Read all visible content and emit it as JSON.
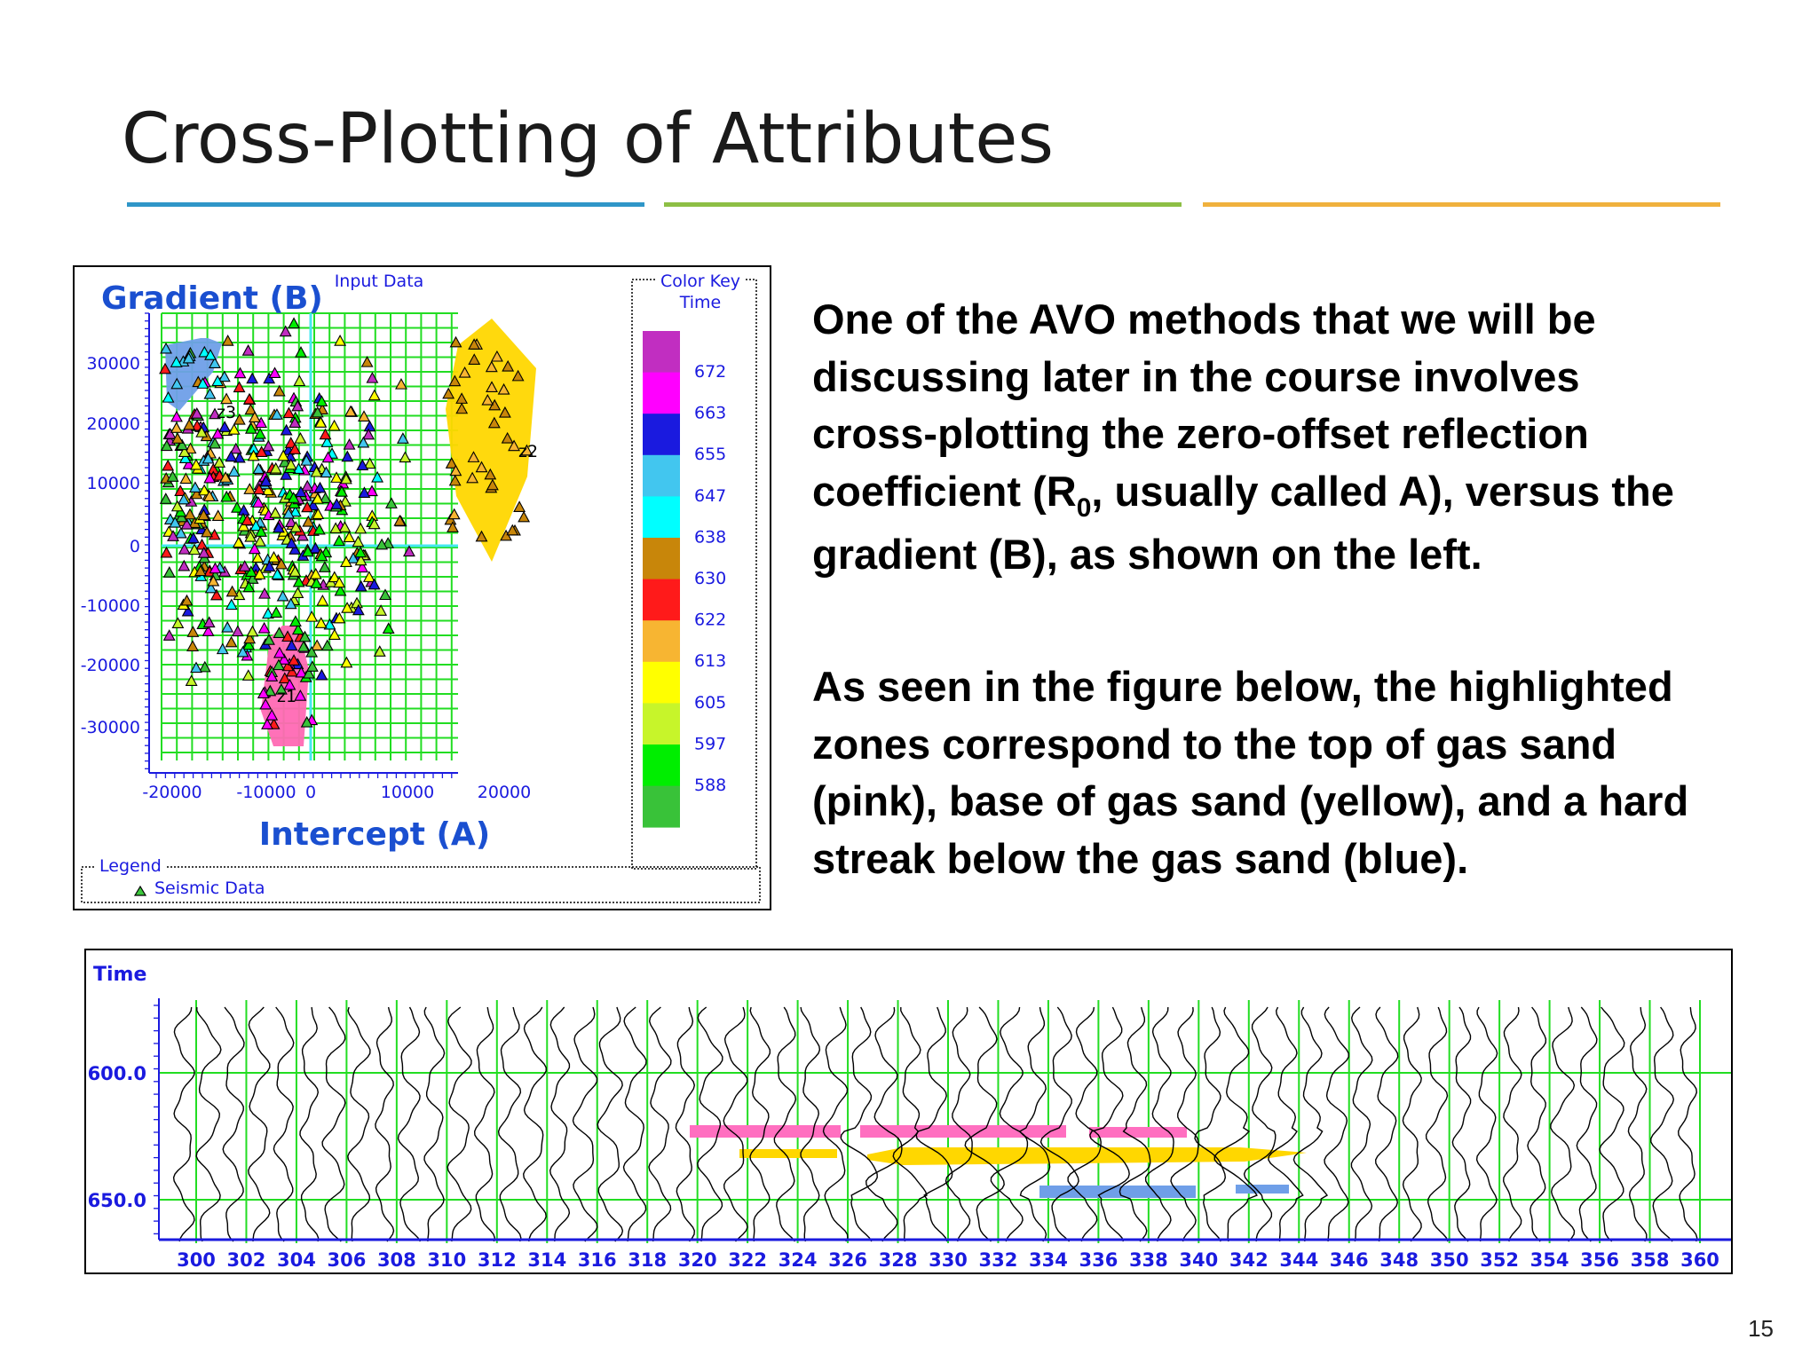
{
  "slide": {
    "title": "Cross-Plotting of Attributes",
    "page_number": "15",
    "divider_colors": [
      "#2f96c8",
      "#8dbf45",
      "#f0b13d"
    ]
  },
  "body": {
    "paragraph1": {
      "line1": "One of the AVO methods that we will be",
      "line2": "discussing later in the course involves",
      "line3": "cross-plotting the zero-offset reflection",
      "line4_before": "coefficient (R",
      "line4_sub": "0",
      "line4_after": ", usually called A), versus the",
      "line5": "gradient (B), as shown on the left."
    },
    "paragraph2": {
      "line1": "As seen in the figure below, the highlighted",
      "line2": "zones correspond to the top of gas sand",
      "line3": "(pink), base of gas sand (yellow), and a hard",
      "line4": "streak below the gas sand (blue)."
    }
  },
  "crossplot": {
    "header": "Input Data",
    "ylabel": "Gradient (B)",
    "xlabel": "Intercept (A)",
    "xticks": [
      "-20000",
      "-10000",
      "0",
      "10000",
      "20000"
    ],
    "yticks": [
      "30000",
      "20000",
      "10000",
      "0",
      "-10000",
      "-20000",
      "-30000"
    ],
    "zone_labels": [
      "z3",
      "z2",
      "z1"
    ],
    "zone_colors": {
      "z1": "#ff69b4",
      "z2": "#ffd700",
      "z3": "#6f9fe8"
    },
    "legend_title": "Legend",
    "legend_item": "Seismic Data",
    "color_key": {
      "title": "Color Key",
      "subtitle": "Time",
      "labels": [
        "672",
        "663",
        "655",
        "647",
        "638",
        "630",
        "622",
        "613",
        "605",
        "597",
        "588"
      ],
      "colors": [
        "#c12ec1",
        "#ff00ff",
        "#1a1adf",
        "#42c6ef",
        "#00ffff",
        "#c8860a",
        "#ff1a1a",
        "#f7b532",
        "#ffff00",
        "#c7f52a",
        "#00ee00",
        "#39c239"
      ]
    }
  },
  "seismic": {
    "ylabel": "Time",
    "yticks": [
      "600.0",
      "650.0"
    ],
    "xticks": [
      "300",
      "302",
      "304",
      "306",
      "308",
      "310",
      "312",
      "314",
      "316",
      "318",
      "320",
      "322",
      "324",
      "326",
      "328",
      "330",
      "332",
      "334",
      "336",
      "338",
      "340",
      "342",
      "344",
      "346",
      "348",
      "350",
      "352",
      "354",
      "356",
      "358",
      "360"
    ],
    "highlight_colors": {
      "top_gas_sand": "#ff6fc0",
      "base_gas_sand": "#ffd700",
      "hard_streak": "#6f9fe8"
    }
  }
}
